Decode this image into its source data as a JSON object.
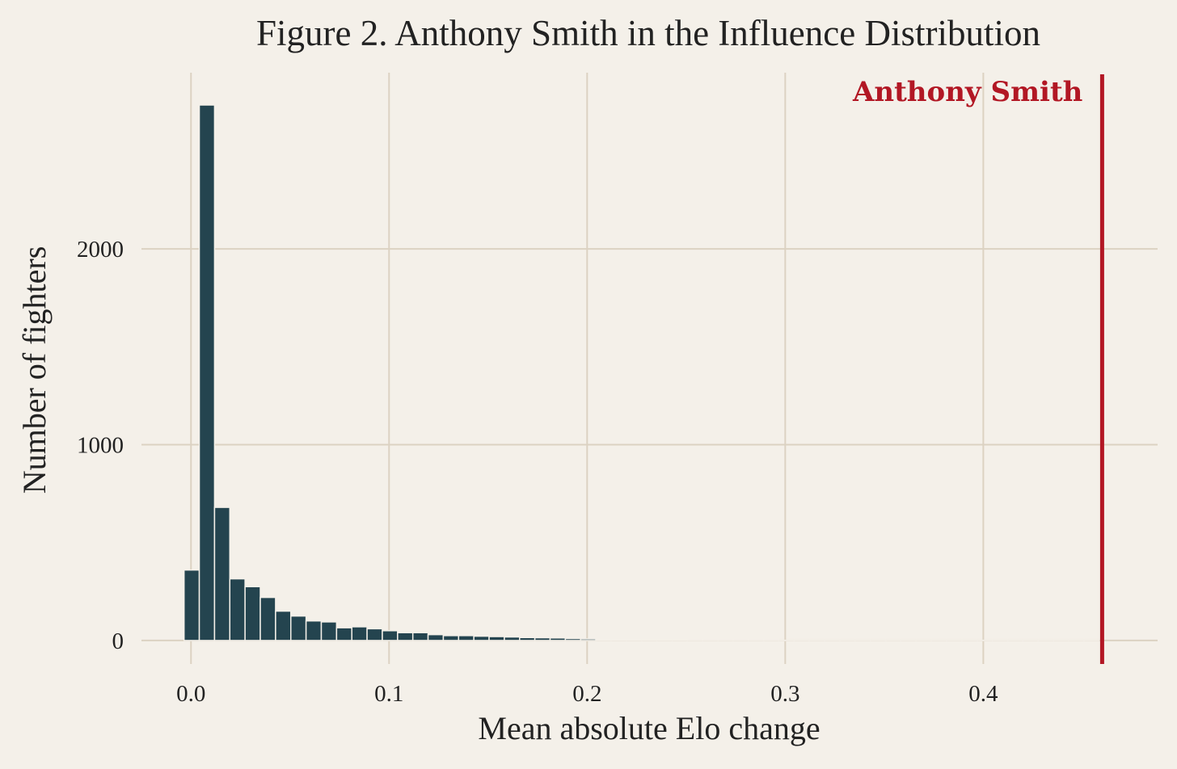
{
  "chart_data": {
    "type": "bar",
    "title": "Figure 2. Anthony Smith in the Influence Distribution",
    "xlabel": "Mean absolute Elo change",
    "ylabel": "Number of fighters",
    "xlim": [
      -0.025,
      0.488
    ],
    "ylim": [
      -120,
      2900
    ],
    "xticks": [
      0.0,
      0.1,
      0.2,
      0.3,
      0.4
    ],
    "xtick_labels": [
      "0.0",
      "0.1",
      "0.2",
      "0.3",
      "0.4"
    ],
    "yticks": [
      0,
      1000,
      2000
    ],
    "ytick_labels": [
      "0",
      "1000",
      "2000"
    ],
    "grid": true,
    "bin_width": 0.0077,
    "bin_start": -0.0035,
    "values": [
      360,
      2735,
      680,
      315,
      275,
      220,
      150,
      125,
      100,
      95,
      65,
      70,
      60,
      50,
      40,
      40,
      30,
      25,
      25,
      22,
      20,
      18,
      15,
      14,
      13,
      10,
      8,
      6,
      5,
      4,
      3,
      3,
      3,
      2,
      2,
      2,
      2,
      2,
      2,
      1,
      1,
      1,
      1,
      1,
      1,
      1,
      1,
      1,
      1,
      1,
      1,
      1,
      1,
      1,
      1,
      1,
      1,
      1,
      1,
      1
    ],
    "bar_color": "#24444f",
    "highlight": {
      "label": "Anthony Smith",
      "x": 0.46,
      "color": "#b21724"
    }
  }
}
